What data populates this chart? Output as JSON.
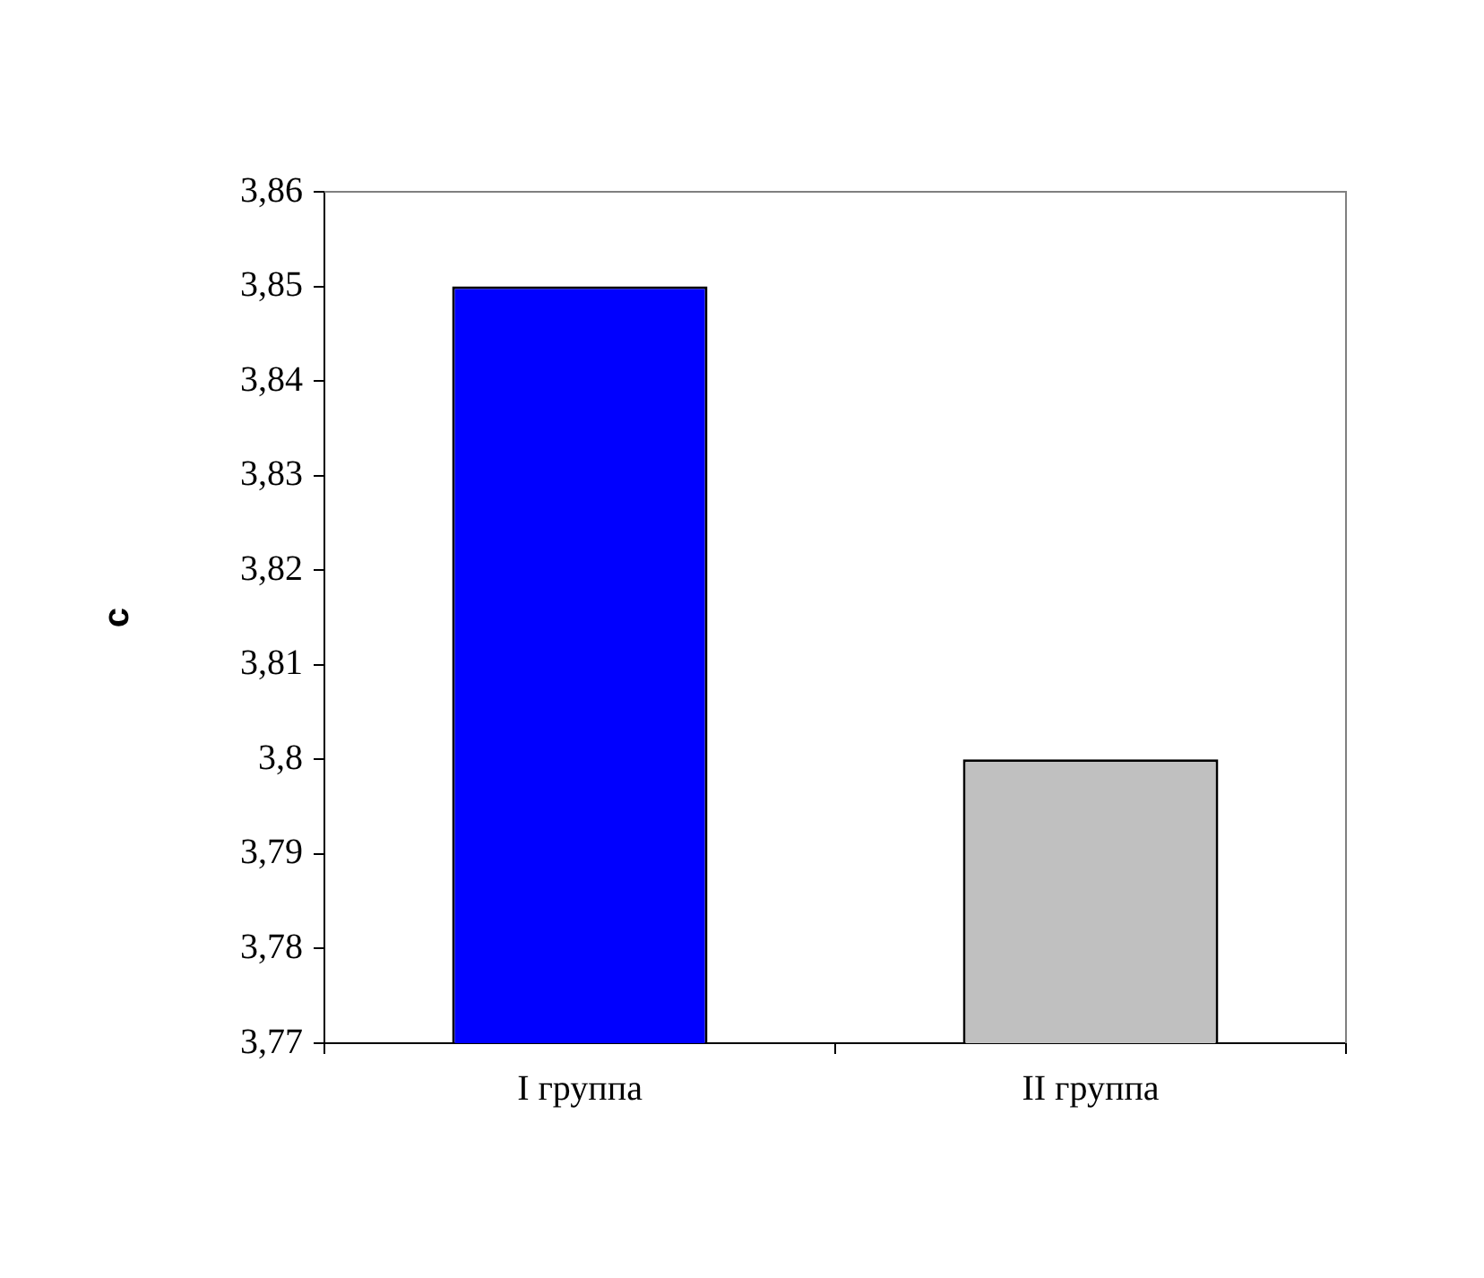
{
  "chart_data": {
    "type": "bar",
    "ylabel": "с",
    "categories": [
      "I группа",
      "II группа"
    ],
    "values": [
      3.85,
      3.8
    ],
    "colors": [
      "#0000ff",
      "#c0c0c0"
    ],
    "ylim": [
      3.77,
      3.86
    ],
    "yticks": [
      {
        "value": 3.77,
        "label": "3,77"
      },
      {
        "value": 3.78,
        "label": "3,78"
      },
      {
        "value": 3.79,
        "label": "3,79"
      },
      {
        "value": 3.8,
        "label": "3,8"
      },
      {
        "value": 3.81,
        "label": "3,81"
      },
      {
        "value": 3.82,
        "label": "3,82"
      },
      {
        "value": 3.83,
        "label": "3,83"
      },
      {
        "value": 3.84,
        "label": "3,84"
      },
      {
        "value": 3.85,
        "label": "3,85"
      },
      {
        "value": 3.86,
        "label": "3,86"
      }
    ],
    "grid": false,
    "legend": false
  }
}
